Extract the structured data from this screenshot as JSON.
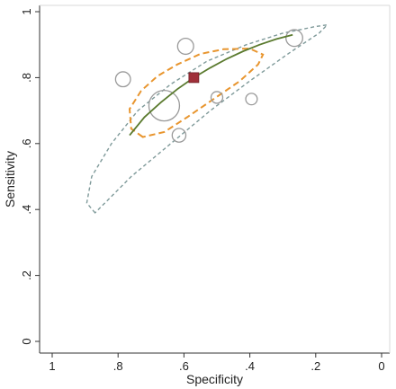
{
  "chart_data": {
    "type": "scatter",
    "title": "",
    "xlabel": "Specificity",
    "ylabel": "Sensitivity",
    "x_reversed": true,
    "xlim": [
      1,
      0
    ],
    "ylim": [
      0,
      1
    ],
    "x_ticks": [
      1,
      0.8,
      0.6,
      0.4,
      0.2,
      0
    ],
    "x_tick_labels": [
      "1",
      ".8",
      ".6",
      ".4",
      ".2",
      "0"
    ],
    "y_ticks": [
      0,
      0.2,
      0.4,
      0.6,
      0.8,
      1
    ],
    "y_tick_labels": [
      "0",
      ".2",
      ".4",
      ".6",
      ".8",
      "1"
    ],
    "grid": false,
    "studies": [
      {
        "specificity": 0.66,
        "sensitivity": 0.715,
        "weight": 1.0
      },
      {
        "specificity": 0.265,
        "sensitivity": 0.92,
        "weight": 0.45
      },
      {
        "specificity": 0.595,
        "sensitivity": 0.895,
        "weight": 0.42
      },
      {
        "specificity": 0.785,
        "sensitivity": 0.795,
        "weight": 0.38
      },
      {
        "specificity": 0.615,
        "sensitivity": 0.625,
        "weight": 0.33
      },
      {
        "specificity": 0.5,
        "sensitivity": 0.74,
        "weight": 0.25
      },
      {
        "specificity": 0.395,
        "sensitivity": 0.735,
        "weight": 0.24
      }
    ],
    "summary_point": {
      "specificity": 0.57,
      "sensitivity": 0.8
    },
    "sroc_curve": [
      [
        0.765,
        0.625
      ],
      [
        0.72,
        0.68
      ],
      [
        0.67,
        0.725
      ],
      [
        0.62,
        0.765
      ],
      [
        0.57,
        0.8
      ],
      [
        0.52,
        0.83
      ],
      [
        0.47,
        0.857
      ],
      [
        0.42,
        0.88
      ],
      [
        0.37,
        0.9
      ],
      [
        0.32,
        0.917
      ],
      [
        0.27,
        0.93
      ]
    ],
    "confidence_region": [
      [
        0.725,
        0.62
      ],
      [
        0.76,
        0.645
      ],
      [
        0.765,
        0.705
      ],
      [
        0.73,
        0.76
      ],
      [
        0.68,
        0.805
      ],
      [
        0.62,
        0.84
      ],
      [
        0.55,
        0.872
      ],
      [
        0.48,
        0.886
      ],
      [
        0.4,
        0.888
      ],
      [
        0.36,
        0.87
      ],
      [
        0.375,
        0.84
      ],
      [
        0.43,
        0.79
      ],
      [
        0.51,
        0.735
      ],
      [
        0.59,
        0.68
      ],
      [
        0.66,
        0.635
      ]
    ],
    "prediction_region": [
      [
        0.87,
        0.39
      ],
      [
        0.895,
        0.42
      ],
      [
        0.88,
        0.5
      ],
      [
        0.82,
        0.6
      ],
      [
        0.74,
        0.7
      ],
      [
        0.64,
        0.78
      ],
      [
        0.53,
        0.85
      ],
      [
        0.41,
        0.9
      ],
      [
        0.3,
        0.935
      ],
      [
        0.2,
        0.955
      ],
      [
        0.165,
        0.96
      ],
      [
        0.19,
        0.935
      ],
      [
        0.28,
        0.875
      ],
      [
        0.4,
        0.79
      ],
      [
        0.52,
        0.7
      ],
      [
        0.64,
        0.6
      ],
      [
        0.76,
        0.5
      ],
      [
        0.84,
        0.42
      ]
    ],
    "colors": {
      "curve": "#5a7a2e",
      "summary_point": "#a0303a",
      "confidence_region": "#e8952e",
      "prediction_region": "#7f9a9a",
      "study_marker": "#9a9a9a",
      "axis": "#333333"
    }
  }
}
